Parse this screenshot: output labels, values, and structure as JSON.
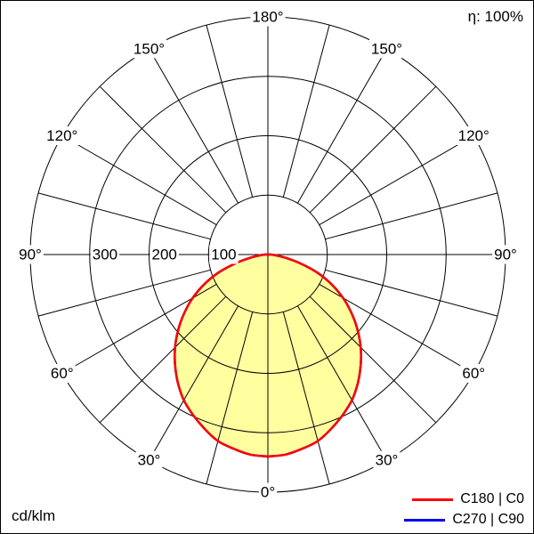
{
  "header": {
    "eta": "η: 100%"
  },
  "footer": {
    "unit": "cd/klm"
  },
  "chart_data": {
    "type": "polar",
    "subtype": "luminous-intensity-distribution",
    "unit": "cd/klm",
    "efficiency": "η: 100%",
    "max_value": 400,
    "ring_step": 100,
    "radial_labels": [
      "100",
      "200",
      "300"
    ],
    "angle_labels": [
      "0°",
      "30°",
      "60°",
      "90°",
      "120°",
      "150°",
      "180°"
    ],
    "spoke_step_deg": 15,
    "grid_color": "#000000",
    "label_mask_color": "#ffffff",
    "series": [
      {
        "name": "C180 | C0",
        "color": "#ff0000",
        "fill": "#ffffa0",
        "gamma_deg": [
          0,
          5,
          10,
          15,
          20,
          25,
          30,
          35,
          40,
          45,
          50,
          55,
          60,
          65,
          70,
          75,
          80,
          85,
          90,
          105,
          120,
          135,
          150,
          165,
          180
        ],
        "values": [
          340,
          338,
          332,
          325,
          312,
          298,
          283,
          264,
          243,
          221,
          197,
          172,
          146,
          118,
          88,
          55,
          28,
          12,
          5,
          0,
          0,
          0,
          0,
          0,
          0
        ]
      },
      {
        "name": "C270 | C90",
        "color": "#0000ee",
        "fill": "none",
        "gamma_deg": [
          0,
          5,
          10,
          15,
          20,
          25,
          30,
          35,
          40,
          45,
          50,
          55,
          60,
          65,
          70,
          75,
          80,
          85,
          90,
          105,
          120,
          135,
          150,
          165,
          180
        ],
        "values": [
          340,
          338,
          332,
          325,
          312,
          298,
          283,
          264,
          243,
          221,
          197,
          172,
          146,
          118,
          88,
          55,
          28,
          12,
          5,
          0,
          0,
          0,
          0,
          0,
          0
        ]
      }
    ]
  }
}
